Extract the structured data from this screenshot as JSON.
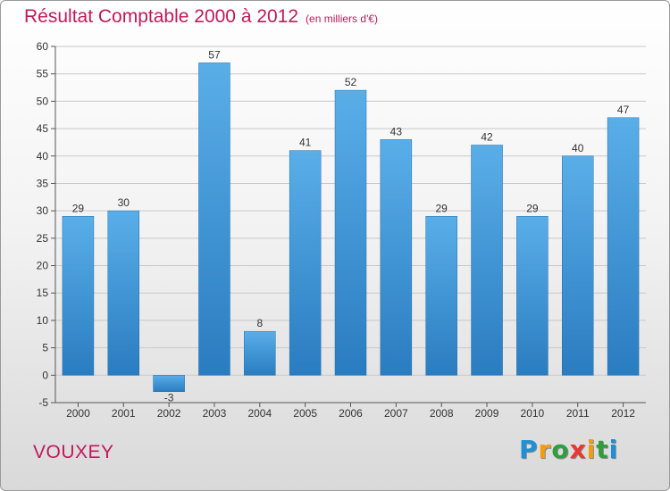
{
  "colors": {
    "title": "#c2185b",
    "bar_top": "#5aaee8",
    "bar_bottom": "#2a7cc0",
    "grid": "#c8c8c8",
    "axis": "#555555"
  },
  "footer": {
    "commune": "VOUXEY",
    "logo": {
      "text": "Proxiti",
      "letters": [
        "P",
        "r",
        "o",
        "x",
        "i",
        "t",
        "i"
      ],
      "letter_colors": [
        "#1f8fd6",
        "#f39c12",
        "#2e9e3e",
        "#e53935",
        "#f39c12",
        "#2e9e3e",
        "#1f8fd6"
      ]
    }
  },
  "chart_data": {
    "type": "bar",
    "title": "Résultat Comptable 2000 à 2012",
    "subtitle": "(en milliers d'€)",
    "categories": [
      "2000",
      "2001",
      "2002",
      "2003",
      "2004",
      "2005",
      "2006",
      "2007",
      "2008",
      "2009",
      "2010",
      "2011",
      "2012"
    ],
    "values": [
      29,
      30,
      -3,
      57,
      8,
      41,
      52,
      43,
      29,
      42,
      29,
      40,
      47
    ],
    "xlabel": "",
    "ylabel": "",
    "ylim": [
      -5,
      60
    ],
    "yticks": [
      -5,
      0,
      5,
      10,
      15,
      20,
      25,
      30,
      35,
      40,
      45,
      50,
      55,
      60
    ],
    "grid": true,
    "legend": "none"
  }
}
